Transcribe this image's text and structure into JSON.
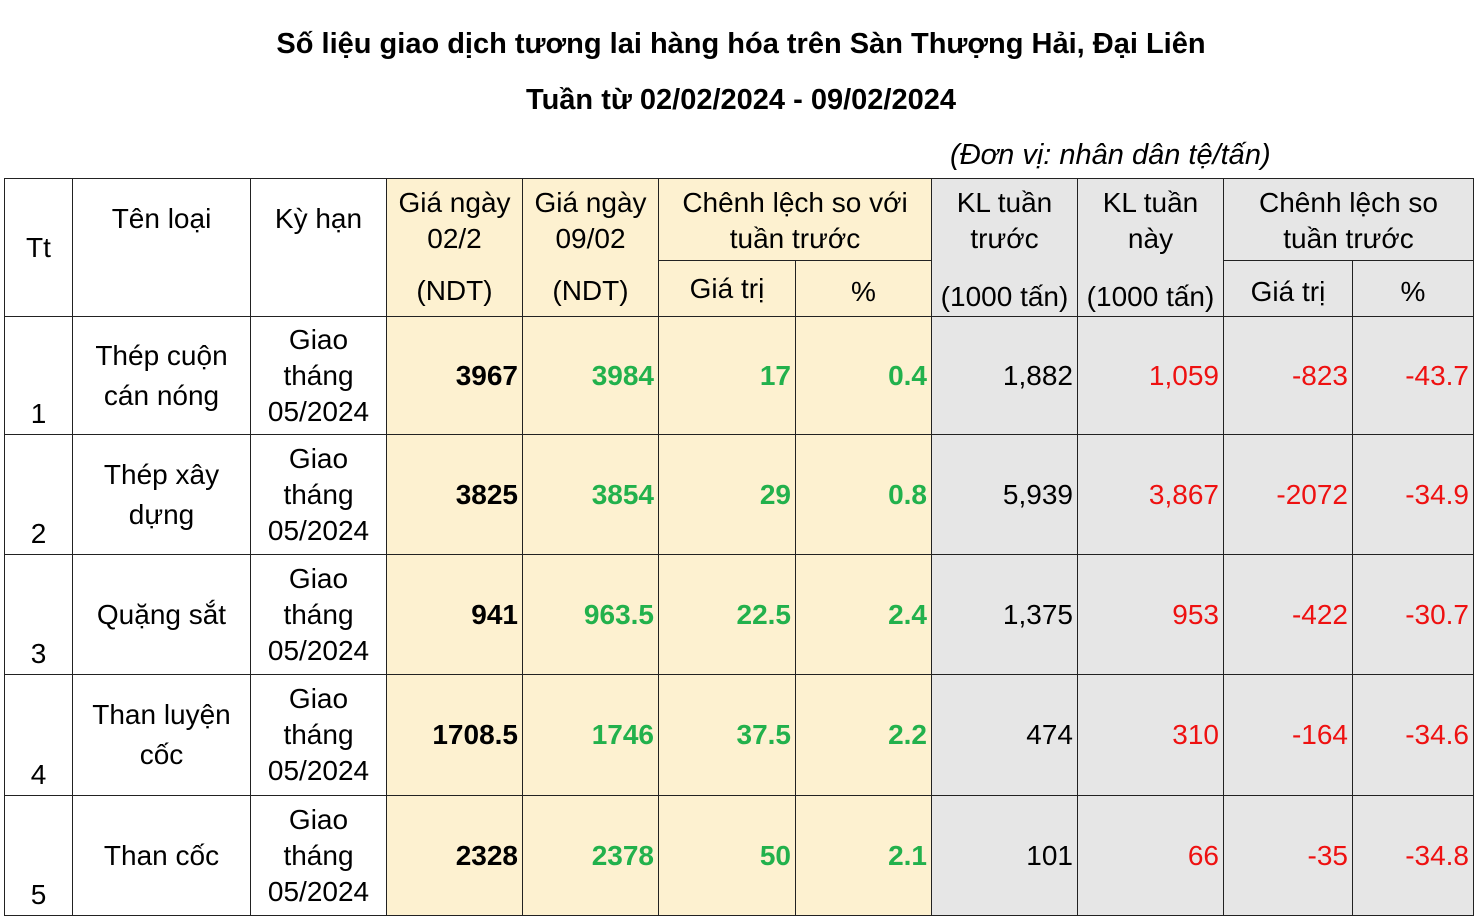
{
  "title": "Số liệu giao dịch tương lai hàng hóa trên Sàn Thượng Hải, Đại Liên",
  "subtitle": "Tuần từ 02/02/2024 - 09/02/2024",
  "unit": "(Đơn vị: nhân dân tệ/tấn)",
  "headers": {
    "tt": "Tt",
    "name": "Tên loại",
    "term": "Kỳ hạn",
    "price_prev_line1": "Giá ngày",
    "price_prev_line2": "02/2",
    "price_prev_unit": "(NDT)",
    "price_cur_line1": "Giá ngày",
    "price_cur_line2": "09/02",
    "price_cur_unit": "(NDT)",
    "diff_line1": "Chênh lệch so với",
    "diff_line2": "tuần trước",
    "diff_value": "Giá trị",
    "diff_pct": "%",
    "vol_prev_line1": "KL tuần",
    "vol_prev_line2": "trước",
    "vol_prev_unit": "(1000 tấn)",
    "vol_cur_line1": "KL tuần",
    "vol_cur_line2": "này",
    "vol_cur_unit": "(1000 tấn)",
    "vol_diff_line1": "Chênh lệch so",
    "vol_diff_line2": "tuần trước",
    "vol_diff_value": "Giá trị",
    "vol_diff_pct": "%"
  },
  "rows": [
    {
      "tt": "1",
      "name_line1": "Thép cuộn",
      "name_line2": "cán nóng",
      "term_line1": "Giao",
      "term_line2": "tháng",
      "term_line3": "05/2024",
      "price_prev": "3967",
      "price_cur": "3984",
      "diff_value": "17",
      "diff_pct": "0.4",
      "vol_prev": "1,882",
      "vol_cur": "1,059",
      "vol_diff": "-823",
      "vol_pct": "-43.7"
    },
    {
      "tt": "2",
      "name_line1": "Thép xây",
      "name_line2": "dựng",
      "term_line1": "Giao",
      "term_line2": "tháng",
      "term_line3": "05/2024",
      "price_prev": "3825",
      "price_cur": "3854",
      "diff_value": "29",
      "diff_pct": "0.8",
      "vol_prev": "5,939",
      "vol_cur": "3,867",
      "vol_diff": "-2072",
      "vol_pct": "-34.9"
    },
    {
      "tt": "3",
      "name_line1": "Quặng sắt",
      "name_line2": "",
      "term_line1": "Giao",
      "term_line2": "tháng",
      "term_line3": "05/2024",
      "price_prev": "941",
      "price_cur": "963.5",
      "diff_value": "22.5",
      "diff_pct": "2.4",
      "vol_prev": "1,375",
      "vol_cur": "953",
      "vol_diff": "-422",
      "vol_pct": "-30.7"
    },
    {
      "tt": "4",
      "name_line1": "Than luyện",
      "name_line2": "cốc",
      "term_line1": "Giao",
      "term_line2": "tháng",
      "term_line3": "05/2024",
      "price_prev": "1708.5",
      "price_cur": "1746",
      "diff_value": "37.5",
      "diff_pct": "2.2",
      "vol_prev": "474",
      "vol_cur": "310",
      "vol_diff": "-164",
      "vol_pct": "-34.6"
    },
    {
      "tt": "5",
      "name_line1": "Than cốc",
      "name_line2": "",
      "term_line1": "Giao",
      "term_line2": "tháng",
      "term_line3": "05/2024",
      "price_prev": "2328",
      "price_cur": "2378",
      "diff_value": "50",
      "diff_pct": "2.1",
      "vol_prev": "101",
      "vol_cur": "66",
      "vol_diff": "-35",
      "vol_pct": "-34.8"
    }
  ],
  "colors": {
    "yellow_fill": "#fdf1d0",
    "gray_fill": "#e6e6e6",
    "positive": "#22b14c",
    "negative": "#ee1111"
  }
}
